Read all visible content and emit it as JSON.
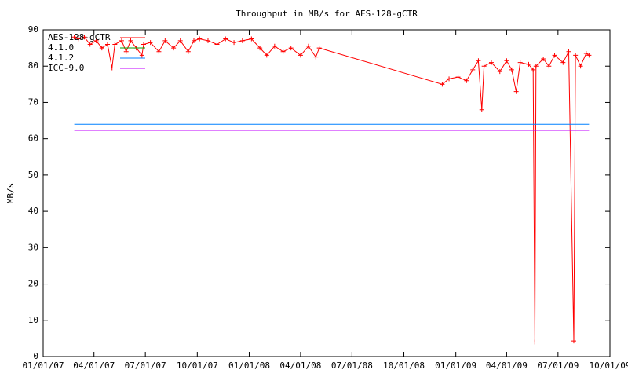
{
  "chart_data": {
    "type": "line",
    "title": "Throughput in MB/s for AES-128-gCTR",
    "y_label": "MB/s",
    "xlim": [
      "01/01/07",
      "10/01/09"
    ],
    "xticks": [
      "01/01/07",
      "04/01/07",
      "07/01/07",
      "10/01/07",
      "01/01/08",
      "04/01/08",
      "07/01/08",
      "10/01/08",
      "01/01/09",
      "04/01/09",
      "07/01/09",
      "10/01/09"
    ],
    "ylim": [
      0,
      90
    ],
    "yticks": [
      0,
      10,
      20,
      30,
      40,
      50,
      60,
      70,
      80,
      90
    ],
    "grid": false,
    "legend": "top-left",
    "series": [
      {
        "name": "AES-128-gCTR",
        "color": "#ff0000",
        "markers": true,
        "x": [
          "02/25/07",
          "03/05/07",
          "03/15/07",
          "03/25/07",
          "04/05/07",
          "04/15/07",
          "04/25/07",
          "05/03/07",
          "05/08/07",
          "05/20/07",
          "05/28/07",
          "06/05/07",
          "06/15/07",
          "06/25/07",
          "06/28/07",
          "07/10/07",
          "07/25/07",
          "08/05/07",
          "08/20/07",
          "09/01/07",
          "09/15/07",
          "09/25/07",
          "10/05/07",
          "10/20/07",
          "11/05/07",
          "11/20/07",
          "12/05/07",
          "12/20/07",
          "01/05/08",
          "01/20/08",
          "02/01/08",
          "02/15/08",
          "03/01/08",
          "03/15/08",
          "04/01/08",
          "04/15/08",
          "04/28/08",
          "05/04/08",
          "12/08/08",
          "12/20/08",
          "01/05/09",
          "01/20/09",
          "01/31/09",
          "02/10/09",
          "02/16/09",
          "02/20/09",
          "03/05/09",
          "03/20/09",
          "04/01/09",
          "04/10/09",
          "04/18/09",
          "04/25/09",
          "05/10/09",
          "05/18/09",
          "05/21/09",
          "05/23/09",
          "06/05/09",
          "06/15/09",
          "06/25/09",
          "07/10/09",
          "07/20/09",
          "07/29/09",
          "08/01/09",
          "08/10/09",
          "08/20/09",
          "08/25/09"
        ],
        "values": [
          88,
          87.5,
          88,
          86,
          87,
          85,
          86,
          79.5,
          86,
          87,
          84,
          87,
          85,
          83,
          86,
          86.5,
          84,
          87,
          85,
          87,
          84,
          87,
          87.5,
          87,
          86,
          87.5,
          86.5,
          87,
          87.5,
          85,
          83,
          85.5,
          84,
          85,
          83,
          85.5,
          82.5,
          85,
          75,
          76.5,
          77,
          76,
          79,
          81.5,
          68,
          80,
          81,
          78.5,
          81.5,
          79,
          73,
          81,
          80.5,
          79,
          4,
          80,
          82,
          80,
          83,
          81,
          84,
          4.3,
          83,
          80,
          83.5,
          83
        ]
      },
      {
        "name": "4.1.0",
        "color": "#00a000",
        "markers": false,
        "x": [],
        "values": []
      },
      {
        "name": "4.1.2",
        "color": "#0080ff",
        "markers": false,
        "x": [
          "02/25/07",
          "08/25/09"
        ],
        "values": [
          64,
          64
        ]
      },
      {
        "name": "ICC-9.0",
        "color": "#c000ff",
        "markers": false,
        "x": [
          "02/25/07",
          "08/25/09"
        ],
        "values": [
          62.3,
          62.3
        ]
      }
    ]
  }
}
